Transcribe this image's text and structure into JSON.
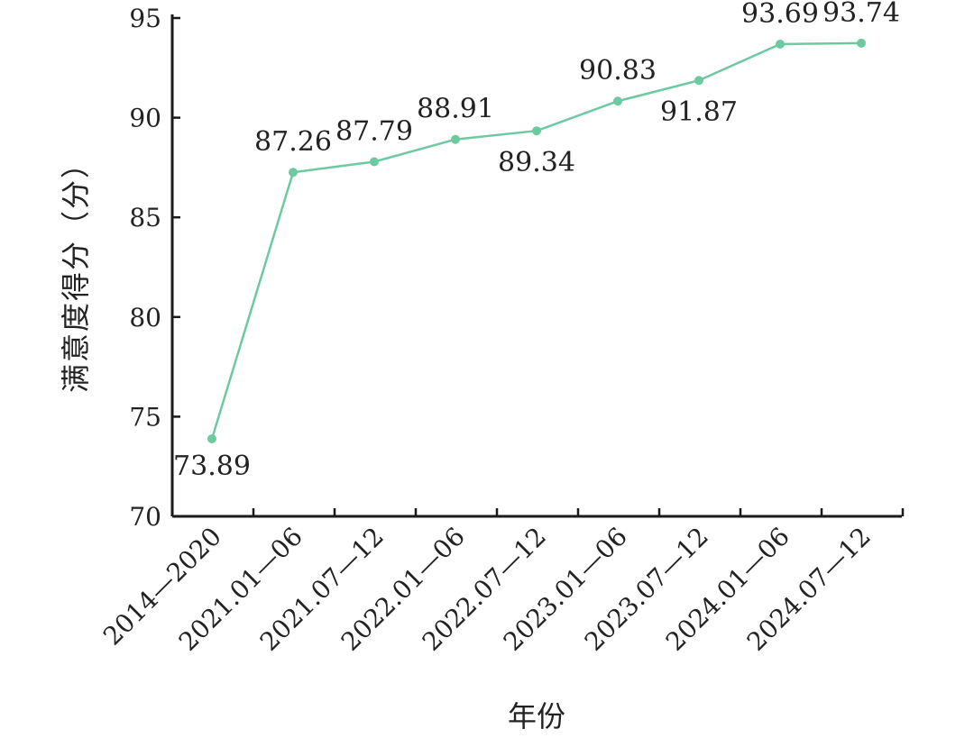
{
  "chart_data": {
    "type": "line",
    "title": "",
    "xlabel": "年份",
    "ylabel": "满意度得分（分）",
    "categories": [
      "2014—2020",
      "2021.01—06",
      "2021.07—12",
      "2022.01—06",
      "2022.07—12",
      "2023.01—06",
      "2023.07—12",
      "2024.01—06",
      "2024.07—12"
    ],
    "series": [
      {
        "values": [
          73.89,
          87.26,
          87.79,
          88.91,
          89.34,
          90.83,
          91.87,
          93.69,
          93.74
        ]
      }
    ],
    "ylim": [
      70,
      95
    ],
    "yticks": [
      70,
      75,
      80,
      85,
      90,
      95
    ],
    "grid": false,
    "legend": "none",
    "line_color": "#6dc9a0"
  }
}
